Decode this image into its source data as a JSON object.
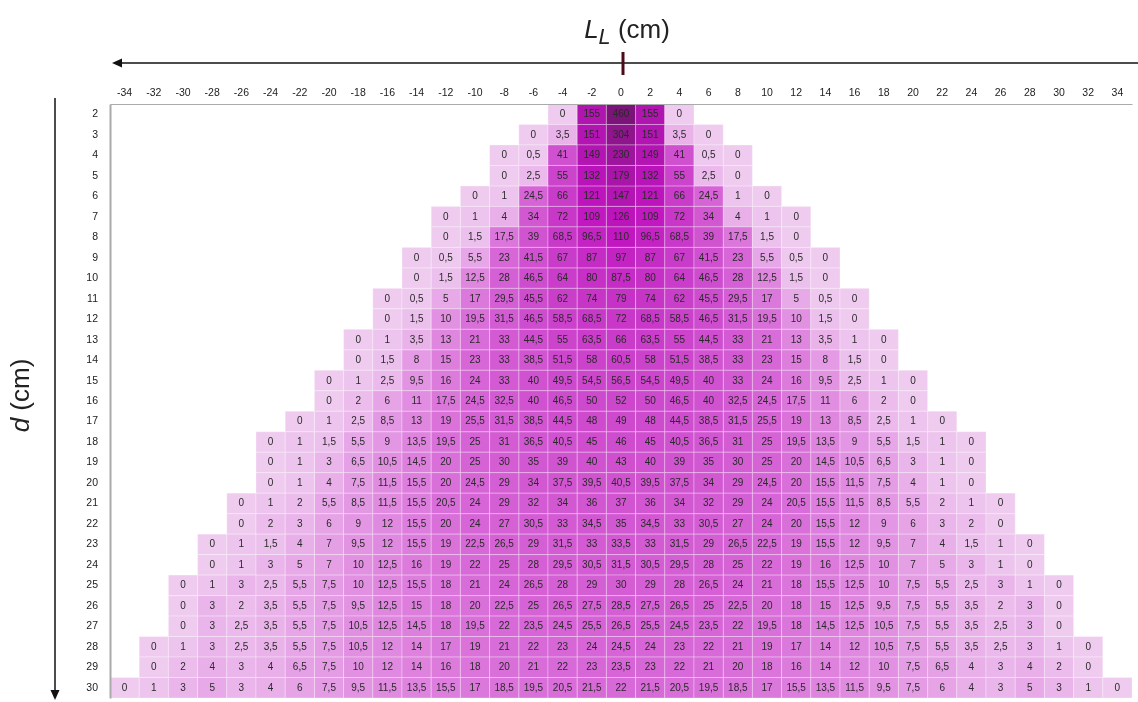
{
  "chart_data": {
    "type": "heatmap",
    "xlabel": "L$_{L}$ (cm)",
    "ylabel": "d (cm)",
    "categories": [
      "-34",
      "-32",
      "-30",
      "-28",
      "-26",
      "-24",
      "-22",
      "-20",
      "-18",
      "-16",
      "-14",
      "-12",
      "-10",
      "-8",
      "-6",
      "-4",
      "-2",
      "0",
      "2",
      "4",
      "6",
      "8",
      "10",
      "12",
      "14",
      "16",
      "18",
      "20",
      "22",
      "24",
      "26",
      "28",
      "30",
      "32",
      "34"
    ],
    "y_categories": [
      "2",
      "3",
      "4",
      "5",
      "6",
      "7",
      "8",
      "9",
      "10",
      "11",
      "12",
      "13",
      "14",
      "15",
      "16",
      "17",
      "18",
      "19",
      "20",
      "21",
      "22",
      "23",
      "24",
      "25",
      "26",
      "27",
      "28",
      "29",
      "30"
    ],
    "cells": [
      [
        null,
        null,
        null,
        null,
        null,
        null,
        null,
        null,
        null,
        null,
        null,
        null,
        null,
        null,
        null,
        0,
        155,
        460,
        155,
        0,
        null,
        null,
        null,
        null,
        null,
        null,
        null,
        null,
        null,
        null,
        null,
        null,
        null,
        null,
        null
      ],
      [
        null,
        null,
        null,
        null,
        null,
        null,
        null,
        null,
        null,
        null,
        null,
        null,
        null,
        null,
        0,
        3.5,
        151,
        304,
        151,
        3.5,
        0,
        null,
        null,
        null,
        null,
        null,
        null,
        null,
        null,
        null,
        null,
        null,
        null,
        null,
        null
      ],
      [
        null,
        null,
        null,
        null,
        null,
        null,
        null,
        null,
        null,
        null,
        null,
        null,
        null,
        0,
        0.5,
        41,
        149,
        230,
        149,
        41,
        0.5,
        0,
        null,
        null,
        null,
        null,
        null,
        null,
        null,
        null,
        null,
        null,
        null,
        null,
        null
      ],
      [
        null,
        null,
        null,
        null,
        null,
        null,
        null,
        null,
        null,
        null,
        null,
        null,
        null,
        0,
        2.5,
        55,
        132,
        179,
        132,
        55,
        2.5,
        0,
        null,
        null,
        null,
        null,
        null,
        null,
        null,
        null,
        null,
        null,
        null,
        null,
        null
      ],
      [
        null,
        null,
        null,
        null,
        null,
        null,
        null,
        null,
        null,
        null,
        null,
        null,
        0,
        1,
        24.5,
        66,
        121,
        147,
        121,
        66,
        24.5,
        1,
        0,
        null,
        null,
        null,
        null,
        null,
        null,
        null,
        null,
        null,
        null,
        null,
        null
      ],
      [
        null,
        null,
        null,
        null,
        null,
        null,
        null,
        null,
        null,
        null,
        null,
        0,
        1,
        4,
        34,
        72,
        109,
        126,
        109,
        72,
        34,
        4,
        1,
        0,
        null,
        null,
        null,
        null,
        null,
        null,
        null,
        null,
        null,
        null,
        null
      ],
      [
        null,
        null,
        null,
        null,
        null,
        null,
        null,
        null,
        null,
        null,
        null,
        0,
        1.5,
        17.5,
        39,
        68.5,
        96.5,
        110,
        96.5,
        68.5,
        39,
        17.5,
        1.5,
        0,
        null,
        null,
        null,
        null,
        null,
        null,
        null,
        null,
        null,
        null,
        null
      ],
      [
        null,
        null,
        null,
        null,
        null,
        null,
        null,
        null,
        null,
        null,
        0,
        0.5,
        5.5,
        23,
        41.5,
        67,
        87,
        97,
        87,
        67,
        41.5,
        23,
        5.5,
        0.5,
        0,
        null,
        null,
        null,
        null,
        null,
        null,
        null,
        null,
        null,
        null
      ],
      [
        null,
        null,
        null,
        null,
        null,
        null,
        null,
        null,
        null,
        null,
        0,
        1.5,
        12.5,
        28,
        46.5,
        64,
        80,
        87.5,
        80,
        64,
        46.5,
        28,
        12.5,
        1.5,
        0,
        null,
        null,
        null,
        null,
        null,
        null,
        null,
        null,
        null,
        null
      ],
      [
        null,
        null,
        null,
        null,
        null,
        null,
        null,
        null,
        null,
        0,
        0.5,
        5,
        17,
        29.5,
        45.5,
        62,
        74,
        79,
        74,
        62,
        45.5,
        29.5,
        17,
        5,
        0.5,
        0,
        null,
        null,
        null,
        null,
        null,
        null,
        null,
        null,
        null
      ],
      [
        null,
        null,
        null,
        null,
        null,
        null,
        null,
        null,
        null,
        0,
        1.5,
        10,
        19.5,
        31.5,
        46.5,
        58.5,
        68.5,
        72,
        68.5,
        58.5,
        46.5,
        31.5,
        19.5,
        10,
        1.5,
        0,
        null,
        null,
        null,
        null,
        null,
        null,
        null,
        null,
        null
      ],
      [
        null,
        null,
        null,
        null,
        null,
        null,
        null,
        null,
        0,
        1,
        3.5,
        13,
        21,
        33,
        44.5,
        55,
        63.5,
        66,
        63.5,
        55,
        44.5,
        33,
        21,
        13,
        3.5,
        1,
        0,
        null,
        null,
        null,
        null,
        null,
        null,
        null,
        null
      ],
      [
        null,
        null,
        null,
        null,
        null,
        null,
        null,
        null,
        0,
        1.5,
        8,
        15,
        23,
        33,
        38.5,
        51.5,
        58,
        60.5,
        58,
        51.5,
        38.5,
        33,
        23,
        15,
        8,
        1.5,
        0,
        null,
        null,
        null,
        null,
        null,
        null,
        null,
        null
      ],
      [
        null,
        null,
        null,
        null,
        null,
        null,
        null,
        0,
        1,
        2.5,
        9.5,
        16,
        24,
        33,
        40,
        49.5,
        54.5,
        56.5,
        54.5,
        49.5,
        40,
        33,
        24,
        16,
        9.5,
        2.5,
        1,
        0,
        null,
        null,
        null,
        null,
        null,
        null,
        null
      ],
      [
        null,
        null,
        null,
        null,
        null,
        null,
        null,
        0,
        2,
        6,
        11,
        17.5,
        24.5,
        32.5,
        40,
        46.5,
        50,
        52,
        50,
        46.5,
        40,
        32.5,
        24.5,
        17.5,
        11,
        6,
        2,
        0,
        null,
        null,
        null,
        null,
        null,
        null,
        null
      ],
      [
        null,
        null,
        null,
        null,
        null,
        null,
        0,
        1,
        2.5,
        8.5,
        13,
        19,
        25.5,
        31.5,
        38.5,
        44.5,
        48,
        49,
        48,
        44.5,
        38.5,
        31.5,
        25.5,
        19,
        13,
        8.5,
        2.5,
        1,
        0,
        null,
        null,
        null,
        null,
        null,
        null
      ],
      [
        null,
        null,
        null,
        null,
        null,
        0,
        1,
        1.5,
        5.5,
        9,
        13.5,
        19.5,
        25,
        31,
        36.5,
        40.5,
        45,
        46,
        45,
        40.5,
        36.5,
        31,
        25,
        19.5,
        13.5,
        9,
        5.5,
        1.5,
        1,
        0,
        null,
        null,
        null,
        null,
        null
      ],
      [
        null,
        null,
        null,
        null,
        null,
        0,
        1,
        3,
        6.5,
        10.5,
        14.5,
        20,
        25,
        30,
        35,
        39,
        40,
        43,
        40,
        39,
        35,
        30,
        25,
        20,
        14.5,
        10.5,
        6.5,
        3,
        1,
        0,
        null,
        null,
        null,
        null,
        null
      ],
      [
        null,
        null,
        null,
        null,
        null,
        0,
        1,
        4,
        7.5,
        11.5,
        15.5,
        20,
        24.5,
        29,
        34,
        37.5,
        39.5,
        40.5,
        39.5,
        37.5,
        34,
        29,
        24.5,
        20,
        15.5,
        11.5,
        7.5,
        4,
        1,
        0,
        null,
        null,
        null,
        null,
        null
      ],
      [
        null,
        null,
        null,
        null,
        0,
        1,
        2,
        5.5,
        8.5,
        11.5,
        15.5,
        20.5,
        24,
        29,
        32,
        34,
        36,
        37,
        36,
        34,
        32,
        29,
        24,
        20.5,
        15.5,
        11.5,
        8.5,
        5.5,
        2,
        1,
        0,
        null,
        null,
        null,
        null
      ],
      [
        null,
        null,
        null,
        null,
        0,
        2,
        3,
        6,
        9,
        12,
        15.5,
        20,
        24,
        27,
        30.5,
        33,
        34.5,
        35,
        34.5,
        33,
        30.5,
        27,
        24,
        20,
        15.5,
        12,
        9,
        6,
        3,
        2,
        0,
        null,
        null,
        null,
        null
      ],
      [
        null,
        null,
        null,
        0,
        1,
        1.5,
        4,
        7,
        9.5,
        12,
        15.5,
        19,
        22.5,
        26.5,
        29,
        31.5,
        33,
        33.5,
        33,
        31.5,
        29,
        26.5,
        22.5,
        19,
        15.5,
        12,
        9.5,
        7,
        4,
        1.5,
        1,
        0,
        null,
        null,
        null
      ],
      [
        null,
        null,
        null,
        0,
        1,
        3,
        5,
        7,
        10,
        12.5,
        16,
        19,
        22,
        25,
        28,
        29.5,
        30.5,
        31.5,
        30.5,
        29.5,
        28,
        25,
        22,
        19,
        16,
        12.5,
        10,
        7,
        5,
        3,
        1,
        0,
        null,
        null,
        null
      ],
      [
        null,
        null,
        0,
        1,
        3,
        2.5,
        5.5,
        7.5,
        10,
        12.5,
        15.5,
        18,
        21,
        24,
        26.5,
        28,
        29,
        30,
        29,
        28,
        26.5,
        24,
        21,
        18,
        15.5,
        12.5,
        10,
        7.5,
        5.5,
        2.5,
        3,
        1,
        0,
        null,
        null
      ],
      [
        null,
        null,
        0,
        3,
        2,
        3.5,
        5.5,
        7.5,
        9.5,
        12.5,
        15,
        18,
        20,
        22.5,
        25,
        26.5,
        27.5,
        28.5,
        27.5,
        26.5,
        25,
        22.5,
        20,
        18,
        15,
        12.5,
        9.5,
        7.5,
        5.5,
        3.5,
        2,
        3,
        0,
        null,
        null
      ],
      [
        null,
        null,
        0,
        3,
        2.5,
        3.5,
        5.5,
        7.5,
        10.5,
        12.5,
        14.5,
        18,
        19.5,
        22,
        23.5,
        24.5,
        25.5,
        26.5,
        25.5,
        24.5,
        23.5,
        22,
        19.5,
        18,
        14.5,
        12.5,
        10.5,
        7.5,
        5.5,
        3.5,
        2.5,
        3,
        0,
        null,
        null
      ],
      [
        null,
        0,
        1,
        3,
        2.5,
        3.5,
        5.5,
        7.5,
        10.5,
        12,
        14,
        17,
        19,
        21,
        22,
        23,
        24,
        24.5,
        24,
        23,
        22,
        21,
        19,
        17,
        14,
        12,
        10.5,
        7.5,
        5.5,
        3.5,
        2.5,
        3,
        1,
        0,
        null
      ],
      [
        null,
        0,
        2,
        4,
        3,
        4,
        6.5,
        7.5,
        10,
        12,
        14,
        16,
        18,
        20,
        21,
        22,
        23,
        23.5,
        23,
        22,
        21,
        20,
        18,
        16,
        14,
        12,
        10,
        7.5,
        6.5,
        4,
        3,
        4,
        2,
        0,
        null
      ],
      [
        0,
        1,
        3,
        5,
        3,
        4,
        6,
        7.5,
        9.5,
        11.5,
        13.5,
        15.5,
        17,
        18.5,
        19.5,
        20.5,
        21.5,
        22,
        21.5,
        20.5,
        19.5,
        18.5,
        17,
        15.5,
        13.5,
        11.5,
        9.5,
        7.5,
        6,
        4,
        3,
        5,
        3,
        1,
        0
      ]
    ],
    "cell_labels": [
      [
        null,
        null,
        null,
        null,
        null,
        null,
        null,
        null,
        null,
        null,
        null,
        null,
        null,
        null,
        null,
        "0",
        "155",
        "460",
        "155",
        "0",
        null,
        null,
        null,
        null,
        null,
        null,
        null,
        null,
        null,
        null,
        null,
        null,
        null,
        null,
        null
      ],
      [
        null,
        null,
        null,
        null,
        null,
        null,
        null,
        null,
        null,
        null,
        null,
        null,
        null,
        null,
        "0",
        "3,5",
        "151",
        "304",
        "151",
        "3,5",
        "0",
        null,
        null,
        null,
        null,
        null,
        null,
        null,
        null,
        null,
        null,
        null,
        null,
        null,
        null
      ],
      [
        null,
        null,
        null,
        null,
        null,
        null,
        null,
        null,
        null,
        null,
        null,
        null,
        null,
        "0",
        "0,5",
        "41",
        "149",
        "230",
        "149",
        "41",
        "0,5",
        "0",
        null,
        null,
        null,
        null,
        null,
        null,
        null,
        null,
        null,
        null,
        null,
        null,
        null
      ],
      [
        null,
        null,
        null,
        null,
        null,
        null,
        null,
        null,
        null,
        null,
        null,
        null,
        null,
        "0",
        "2,5",
        "55",
        "132",
        "179",
        "132",
        "55",
        "2,5",
        "0",
        null,
        null,
        null,
        null,
        null,
        null,
        null,
        null,
        null,
        null,
        null,
        null,
        null
      ],
      [
        null,
        null,
        null,
        null,
        null,
        null,
        null,
        null,
        null,
        null,
        null,
        null,
        "0",
        "1",
        "24,5",
        "66",
        "121",
        "147",
        "121",
        "66",
        "24,5",
        "1",
        "0",
        null,
        null,
        null,
        null,
        null,
        null,
        null,
        null,
        null,
        null,
        null,
        null
      ],
      [
        null,
        null,
        null,
        null,
        null,
        null,
        null,
        null,
        null,
        null,
        null,
        "0",
        "1",
        "4",
        "34",
        "72",
        "109",
        "126",
        "109",
        "72",
        "34",
        "4",
        "1",
        "0",
        null,
        null,
        null,
        null,
        null,
        null,
        null,
        null,
        null,
        null,
        null
      ],
      [
        null,
        null,
        null,
        null,
        null,
        null,
        null,
        null,
        null,
        null,
        null,
        "0",
        "1,5",
        "17,5",
        "39",
        "68,5",
        "96,5",
        "110",
        "96,5",
        "68,5",
        "39",
        "17,5",
        "1,5",
        "0",
        null,
        null,
        null,
        null,
        null,
        null,
        null,
        null,
        null,
        null,
        null
      ],
      [
        null,
        null,
        null,
        null,
        null,
        null,
        null,
        null,
        null,
        null,
        "0",
        "0,5",
        "5,5",
        "23",
        "41,5",
        "67",
        "87",
        "97",
        "87",
        "67",
        "41,5",
        "23",
        "5,5",
        "0,5",
        "0",
        null,
        null,
        null,
        null,
        null,
        null,
        null,
        null,
        null,
        null
      ],
      [
        null,
        null,
        null,
        null,
        null,
        null,
        null,
        null,
        null,
        null,
        "0",
        "1,5",
        "12,5",
        "28",
        "46,5",
        "64",
        "80",
        "87,5",
        "80",
        "64",
        "46,5",
        "28",
        "12,5",
        "1,5",
        "0",
        null,
        null,
        null,
        null,
        null,
        null,
        null,
        null,
        null,
        null
      ],
      [
        null,
        null,
        null,
        null,
        null,
        null,
        null,
        null,
        null,
        "0",
        "0,5",
        "5",
        "17",
        "29,5",
        "45,5",
        "62",
        "74",
        "79",
        "74",
        "62",
        "45,5",
        "29,5",
        "17",
        "5",
        "0,5",
        "0",
        null,
        null,
        null,
        null,
        null,
        null,
        null,
        null,
        null
      ],
      [
        null,
        null,
        null,
        null,
        null,
        null,
        null,
        null,
        null,
        "0",
        "1,5",
        "10",
        "19,5",
        "31,5",
        "46,5",
        "58,5",
        "68,5",
        "72",
        "68,5",
        "58,5",
        "46,5",
        "31,5",
        "19,5",
        "10",
        "1,5",
        "0",
        null,
        null,
        null,
        null,
        null,
        null,
        null,
        null,
        null
      ],
      [
        null,
        null,
        null,
        null,
        null,
        null,
        null,
        null,
        "0",
        "1",
        "3,5",
        "13",
        "21",
        "33",
        "44,5",
        "55",
        "63,5",
        "66",
        "63,5",
        "55",
        "44,5",
        "33",
        "21",
        "13",
        "3,5",
        "1",
        "0",
        null,
        null,
        null,
        null,
        null,
        null,
        null,
        null
      ],
      [
        null,
        null,
        null,
        null,
        null,
        null,
        null,
        null,
        "0",
        "1,5",
        "8",
        "15",
        "23",
        "33",
        "38,5",
        "51,5",
        "58",
        "60,5",
        "58",
        "51,5",
        "38,5",
        "33",
        "23",
        "15",
        "8",
        "1,5",
        "0",
        null,
        null,
        null,
        null,
        null,
        null,
        null,
        null
      ],
      [
        null,
        null,
        null,
        null,
        null,
        null,
        null,
        "0",
        "1",
        "2,5",
        "9,5",
        "16",
        "24",
        "33",
        "40",
        "49,5",
        "54,5",
        "56,5",
        "54,5",
        "49,5",
        "40",
        "33",
        "24",
        "16",
        "9,5",
        "2,5",
        "1",
        "0",
        null,
        null,
        null,
        null,
        null,
        null,
        null
      ],
      [
        null,
        null,
        null,
        null,
        null,
        null,
        null,
        "0",
        "2",
        "6",
        "11",
        "17,5",
        "24,5",
        "32,5",
        "40",
        "46,5",
        "50",
        "52",
        "50",
        "46,5",
        "40",
        "32,5",
        "24,5",
        "17,5",
        "11",
        "6",
        "2",
        "0",
        null,
        null,
        null,
        null,
        null,
        null,
        null
      ],
      [
        null,
        null,
        null,
        null,
        null,
        null,
        "0",
        "1",
        "2,5",
        "8,5",
        "13",
        "19",
        "25,5",
        "31,5",
        "38,5",
        "44,5",
        "48",
        "49",
        "48",
        "44,5",
        "38,5",
        "31,5",
        "25,5",
        "19",
        "13",
        "8,5",
        "2,5",
        "1",
        "0",
        null,
        null,
        null,
        null,
        null,
        null
      ],
      [
        null,
        null,
        null,
        null,
        null,
        "0",
        "1",
        "1,5",
        "5,5",
        "9",
        "13,5",
        "19,5",
        "25",
        "31",
        "36,5",
        "40,5",
        "45",
        "46",
        "45",
        "40,5",
        "36,5",
        "31",
        "25",
        "19,5",
        "13,5",
        "9",
        "5,5",
        "1,5",
        "1",
        "0",
        null,
        null,
        null,
        null,
        null
      ],
      [
        null,
        null,
        null,
        null,
        null,
        "0",
        "1",
        "3",
        "6,5",
        "10,5",
        "14,5",
        "20",
        "25",
        "30",
        "35",
        "39",
        "40",
        "43",
        "40",
        "39",
        "35",
        "30",
        "25",
        "20",
        "14,5",
        "10,5",
        "6,5",
        "3",
        "1",
        "0",
        null,
        null,
        null,
        null,
        null
      ],
      [
        null,
        null,
        null,
        null,
        null,
        "0",
        "1",
        "4",
        "7,5",
        "11,5",
        "15,5",
        "20",
        "24,5",
        "29",
        "34",
        "37,5",
        "39,5",
        "40,5",
        "39,5",
        "37,5",
        "34",
        "29",
        "24,5",
        "20",
        "15,5",
        "11,5",
        "7,5",
        "4",
        "1",
        "0",
        null,
        null,
        null,
        null,
        null
      ],
      [
        null,
        null,
        null,
        null,
        "0",
        "1",
        "2",
        "5,5",
        "8,5",
        "11,5",
        "15,5",
        "20,5",
        "24",
        "29",
        "32",
        "34",
        "36",
        "37",
        "36",
        "34",
        "32",
        "29",
        "24",
        "20,5",
        "15,5",
        "11,5",
        "8,5",
        "5,5",
        "2",
        "1",
        "0",
        null,
        null,
        null,
        null
      ],
      [
        null,
        null,
        null,
        null,
        "0",
        "2",
        "3",
        "6",
        "9",
        "12",
        "15,5",
        "20",
        "24",
        "27",
        "30,5",
        "33",
        "34,5",
        "35",
        "34,5",
        "33",
        "30,5",
        "27",
        "24",
        "20",
        "15,5",
        "12",
        "9",
        "6",
        "3",
        "2",
        "0",
        null,
        null,
        null,
        null
      ],
      [
        null,
        null,
        null,
        "0",
        "1",
        "1,5",
        "4",
        "7",
        "9,5",
        "12",
        "15,5",
        "19",
        "22,5",
        "26,5",
        "29",
        "31,5",
        "33",
        "33,5",
        "33",
        "31,5",
        "29",
        "26,5",
        "22,5",
        "19",
        "15,5",
        "12",
        "9,5",
        "7",
        "4",
        "1,5",
        "1",
        "0",
        null,
        null,
        null
      ],
      [
        null,
        null,
        null,
        "0",
        "1",
        "3",
        "5",
        "7",
        "10",
        "12,5",
        "16",
        "19",
        "22",
        "25",
        "28",
        "29,5",
        "30,5",
        "31,5",
        "30,5",
        "29,5",
        "28",
        "25",
        "22",
        "19",
        "16",
        "12,5",
        "10",
        "7",
        "5",
        "3",
        "1",
        "0",
        null,
        null,
        null
      ],
      [
        null,
        null,
        "0",
        "1",
        "3",
        "2,5",
        "5,5",
        "7,5",
        "10",
        "12,5",
        "15,5",
        "18",
        "21",
        "24",
        "26,5",
        "28",
        "29",
        "30",
        "29",
        "28",
        "26,5",
        "24",
        "21",
        "18",
        "15,5",
        "12,5",
        "10",
        "7,5",
        "5,5",
        "2,5",
        "3",
        "1",
        "0",
        null,
        null
      ],
      [
        null,
        null,
        "0",
        "3",
        "2",
        "3,5",
        "5,5",
        "7,5",
        "9,5",
        "12,5",
        "15",
        "18",
        "20",
        "22,5",
        "25",
        "26,5",
        "27,5",
        "28,5",
        "27,5",
        "26,5",
        "25",
        "22,5",
        "20",
        "18",
        "15",
        "12,5",
        "9,5",
        "7,5",
        "5,5",
        "3,5",
        "2",
        "3",
        "0",
        null,
        null
      ],
      [
        null,
        null,
        "0",
        "3",
        "2,5",
        "3,5",
        "5,5",
        "7,5",
        "10,5",
        "12,5",
        "14,5",
        "18",
        "19,5",
        "22",
        "23,5",
        "24,5",
        "25,5",
        "26,5",
        "25,5",
        "24,5",
        "23,5",
        "22",
        "19,5",
        "18",
        "14,5",
        "12,5",
        "10,5",
        "7,5",
        "5,5",
        "3,5",
        "2,5",
        "3",
        "0",
        null,
        null
      ],
      [
        null,
        "0",
        "1",
        "3",
        "2,5",
        "3,5",
        "5,5",
        "7,5",
        "10,5",
        "12",
        "14",
        "17",
        "19",
        "21",
        "22",
        "23",
        "24",
        "24,5",
        "24",
        "23",
        "22",
        "21",
        "19",
        "17",
        "14",
        "12",
        "10,5",
        "7,5",
        "5,5",
        "3,5",
        "2,5",
        "3",
        "1",
        "0",
        null
      ],
      [
        null,
        "0",
        "2",
        "4",
        "3",
        "4",
        "6,5",
        "7,5",
        "10",
        "12",
        "14",
        "16",
        "18",
        "20",
        "21",
        "22",
        "23",
        "23,5",
        "23",
        "22",
        "21",
        "20",
        "18",
        "16",
        "14",
        "12",
        "10",
        "7,5",
        "6,5",
        "4",
        "3",
        "4",
        "2",
        "0",
        null
      ],
      [
        "0",
        "1",
        "3",
        "5",
        "3",
        "4",
        "6",
        "7,5",
        "9,5",
        "11,5",
        "13,5",
        "15,5",
        "17",
        "18,5",
        "19,5",
        "20,5",
        "21,5",
        "22",
        "21,5",
        "20,5",
        "19,5",
        "18,5",
        "17",
        "15,5",
        "13,5",
        "11,5",
        "9,5",
        "7,5",
        "6",
        "4",
        "3",
        "5",
        "3",
        "1",
        "0"
      ]
    ]
  }
}
